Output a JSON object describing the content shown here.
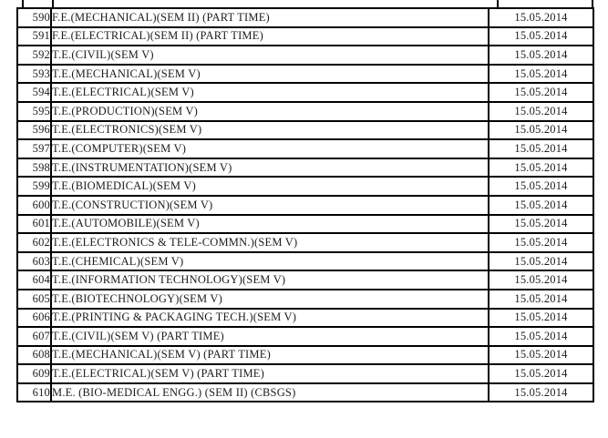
{
  "colors": {
    "background": "#ffffff",
    "border": "#000000",
    "text": "#1c1c1c"
  },
  "table": {
    "rows": [
      {
        "serial": "590",
        "course": "F.E.(MECHANICAL)(SEM II) (PART TIME)",
        "date": "15.05.2014"
      },
      {
        "serial": "591",
        "course": "F.E.(ELECTRICAL)(SEM II) (PART TIME)",
        "date": "15.05.2014"
      },
      {
        "serial": "592",
        "course": "T.E.(CIVIL)(SEM V)",
        "date": "15.05.2014"
      },
      {
        "serial": "593",
        "course": "T.E.(MECHANICAL)(SEM V)",
        "date": "15.05.2014"
      },
      {
        "serial": "594",
        "course": "T.E.(ELECTRICAL)(SEM V)",
        "date": "15.05.2014"
      },
      {
        "serial": "595",
        "course": "T.E.(PRODUCTION)(SEM V)",
        "date": "15.05.2014"
      },
      {
        "serial": "596",
        "course": "T.E.(ELECTRONICS)(SEM V)",
        "date": "15.05.2014"
      },
      {
        "serial": "597",
        "course": "T.E.(COMPUTER)(SEM V)",
        "date": "15.05.2014"
      },
      {
        "serial": "598",
        "course": "T.E.(INSTRUMENTATION)(SEM V)",
        "date": "15.05.2014"
      },
      {
        "serial": "599",
        "course": "T.E.(BIOMEDICAL)(SEM V)",
        "date": "15.05.2014"
      },
      {
        "serial": "600",
        "course": "T.E.(CONSTRUCTION)(SEM V)",
        "date": "15.05.2014"
      },
      {
        "serial": "601",
        "course": "T.E.(AUTOMOBILE)(SEM V)",
        "date": "15.05.2014"
      },
      {
        "serial": "602",
        "course": "T.E.(ELECTRONICS & TELE-COMMN.)(SEM V)",
        "date": "15.05.2014"
      },
      {
        "serial": "603",
        "course": "T.E.(CHEMICAL)(SEM V)",
        "date": "15.05.2014"
      },
      {
        "serial": "604",
        "course": "T.E.(INFORMATION TECHNOLOGY)(SEM V)",
        "date": "15.05.2014"
      },
      {
        "serial": "605",
        "course": "T.E.(BIOTECHNOLOGY)(SEM V)",
        "date": "15.05.2014"
      },
      {
        "serial": "606",
        "course": "T.E.(PRINTING & PACKAGING TECH.)(SEM V)",
        "date": "15.05.2014"
      },
      {
        "serial": "607",
        "course": "T.E.(CIVIL)(SEM V) (PART TIME)",
        "date": "15.05.2014"
      },
      {
        "serial": "608",
        "course": "T.E.(MECHANICAL)(SEM V) (PART TIME)",
        "date": "15.05.2014"
      },
      {
        "serial": "609",
        "course": "T.E.(ELECTRICAL)(SEM V) (PART TIME)",
        "date": "15.05.2014"
      },
      {
        "serial": "610",
        "course": "M.E. (BIO-MEDICAL ENGG.) (SEM II) (CBSGS)",
        "date": "15.05.2014"
      }
    ]
  }
}
